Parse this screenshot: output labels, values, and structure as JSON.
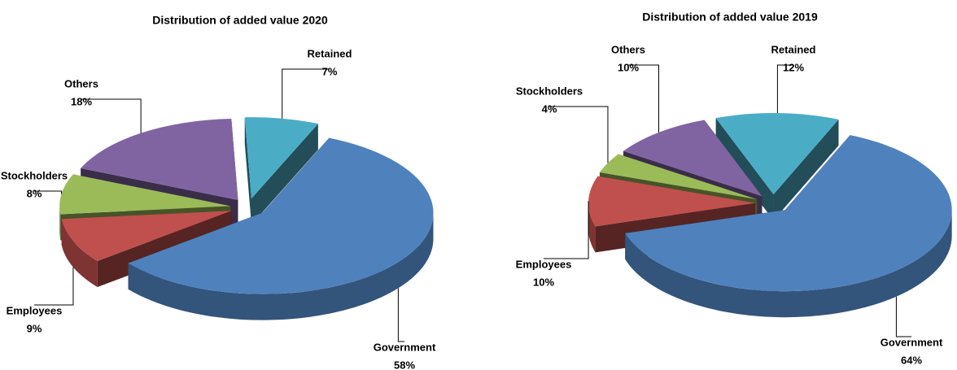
{
  "chart_data": [
    {
      "type": "pie",
      "title": "Distribution of added value 2020",
      "categories": [
        "Government",
        "Employees",
        "Stockholders",
        "Others",
        "Retained"
      ],
      "values": [
        58,
        9,
        8,
        18,
        7
      ],
      "value_labels": [
        "58%",
        "9%",
        "8%",
        "18%",
        "7%"
      ],
      "colors": [
        "#4f81bd",
        "#c0504d",
        "#9bbb59",
        "#8064a2",
        "#4bacc6"
      ]
    },
    {
      "type": "pie",
      "title": "Distribution of added value 2019",
      "categories": [
        "Government",
        "Employees",
        "Stockholders",
        "Others",
        "Retained"
      ],
      "values": [
        64,
        10,
        4,
        10,
        12
      ],
      "value_labels": [
        "64%",
        "10%",
        "4%",
        "10%",
        "12%"
      ],
      "colors": [
        "#4f81bd",
        "#c0504d",
        "#9bbb59",
        "#8064a2",
        "#4bacc6"
      ]
    }
  ]
}
